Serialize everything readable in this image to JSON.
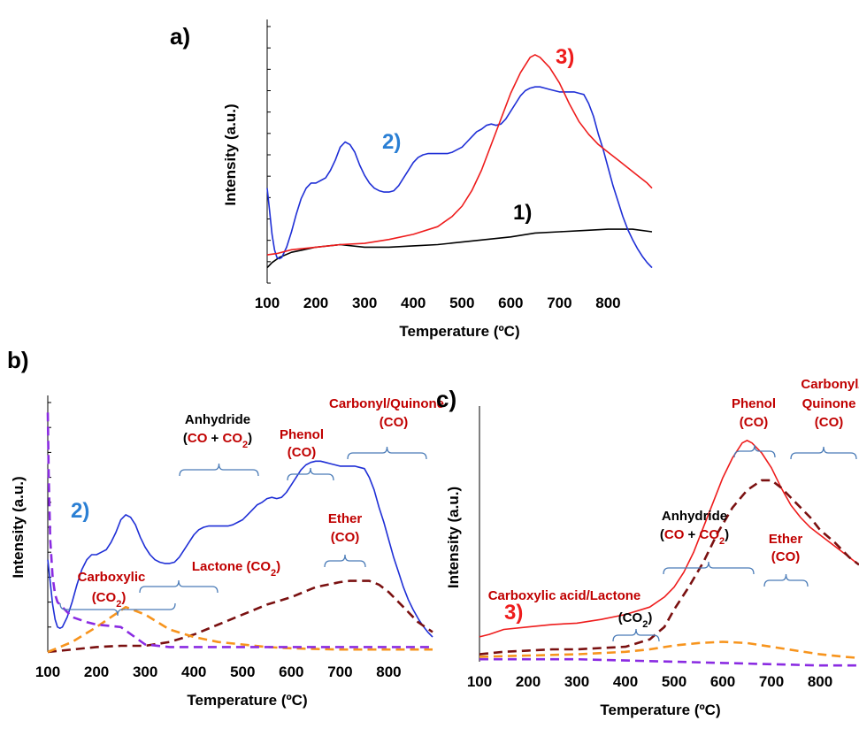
{
  "colors": {
    "blue": "#1f2fd6",
    "red": "#ee1c1c",
    "black": "#000000",
    "darkred": "#7a1010",
    "orange": "#f7941d",
    "purple": "#8a2be2",
    "annotation_red": "#c00000",
    "label_blue": "#2a7fd4",
    "bracket": "#4a7bb7"
  },
  "chart_data": [
    {
      "panel": "a)",
      "type": "line",
      "xlabel": "Temperature (ºC)",
      "ylabel": "Intensity (a.u.)",
      "xticks": [
        100,
        200,
        300,
        400,
        500,
        600,
        700,
        800
      ],
      "xlim": [
        100,
        890
      ],
      "ylim": [
        0,
        100
      ],
      "series": [
        {
          "name": "1)",
          "color": "black",
          "x": [
            100,
            110,
            125,
            150,
            175,
            200,
            250,
            300,
            350,
            400,
            450,
            500,
            550,
            600,
            650,
            700,
            750,
            800,
            850,
            890
          ],
          "y": [
            6,
            8,
            10,
            12,
            13,
            14,
            15,
            14,
            14,
            14.5,
            15,
            16,
            17,
            18,
            19.5,
            20,
            20.5,
            21,
            21,
            20
          ]
        },
        {
          "name": "2)",
          "color": "blue",
          "x": [
            100,
            105,
            110,
            115,
            120,
            125,
            130,
            140,
            150,
            160,
            170,
            180,
            190,
            200,
            210,
            220,
            230,
            240,
            250,
            260,
            270,
            280,
            290,
            300,
            310,
            320,
            330,
            340,
            350,
            360,
            370,
            380,
            390,
            400,
            410,
            420,
            430,
            440,
            450,
            460,
            470,
            480,
            490,
            500,
            510,
            520,
            530,
            540,
            550,
            560,
            570,
            580,
            590,
            600,
            610,
            620,
            630,
            640,
            650,
            660,
            670,
            680,
            690,
            700,
            710,
            720,
            730,
            740,
            750,
            760,
            770,
            780,
            790,
            800,
            810,
            820,
            830,
            840,
            850,
            860,
            870,
            880,
            890
          ],
          "y": [
            37,
            28,
            19,
            13,
            10,
            9.5,
            10,
            14,
            20,
            27,
            33,
            37,
            39,
            39,
            40,
            41,
            44,
            48,
            53,
            55,
            54,
            51,
            46,
            42,
            39,
            37,
            36,
            35.5,
            35.5,
            36,
            38,
            41,
            44,
            47,
            49,
            50,
            50.5,
            50.5,
            50.5,
            50.5,
            50.5,
            51,
            52,
            53,
            55,
            57,
            59,
            60,
            61.5,
            62,
            61.5,
            62,
            64,
            67,
            70,
            73,
            75,
            76,
            76.5,
            76.5,
            76,
            75.5,
            75,
            74.5,
            74.5,
            74.5,
            74.5,
            74,
            73.5,
            70,
            65,
            58,
            52,
            45,
            38,
            32,
            26,
            21,
            17,
            13.5,
            10.5,
            8,
            6
          ]
        },
        {
          "name": "3)",
          "color": "red",
          "x": [
            100,
            120,
            150,
            200,
            250,
            300,
            350,
            400,
            450,
            480,
            500,
            520,
            540,
            560,
            580,
            600,
            620,
            640,
            650,
            660,
            680,
            700,
            720,
            740,
            760,
            780,
            800,
            820,
            840,
            860,
            880,
            890
          ],
          "y": [
            11,
            11.5,
            13,
            14,
            15,
            15.5,
            17,
            19,
            22,
            26,
            30,
            36,
            44,
            54,
            64,
            74,
            82,
            88,
            89,
            88,
            84,
            78,
            70,
            63,
            58,
            54,
            51,
            48,
            45,
            42,
            39,
            37
          ]
        }
      ],
      "labels": [
        "1)",
        "2)",
        "3)"
      ]
    },
    {
      "panel": "b)",
      "type": "line",
      "xlabel": "Temperature (ºC)",
      "ylabel": "Intensity (a.u.)",
      "xticks": [
        100,
        200,
        300,
        400,
        500,
        600,
        700,
        800
      ],
      "xlim": [
        100,
        890
      ],
      "ylim": [
        0,
        100
      ],
      "series": [
        {
          "name": "2)",
          "style": "solid",
          "color": "blue",
          "x": [
            100,
            105,
            110,
            115,
            120,
            125,
            130,
            140,
            150,
            160,
            170,
            180,
            190,
            200,
            210,
            220,
            230,
            240,
            250,
            260,
            270,
            280,
            290,
            300,
            310,
            320,
            330,
            340,
            350,
            360,
            370,
            380,
            390,
            400,
            410,
            420,
            430,
            440,
            450,
            460,
            470,
            480,
            490,
            500,
            510,
            520,
            530,
            540,
            550,
            560,
            570,
            580,
            590,
            600,
            610,
            620,
            630,
            640,
            650,
            660,
            670,
            680,
            690,
            700,
            710,
            720,
            730,
            740,
            750,
            760,
            770,
            780,
            790,
            800,
            810,
            820,
            830,
            840,
            850,
            860,
            870,
            880,
            890
          ],
          "y": [
            37,
            28,
            19,
            13,
            10,
            9.5,
            10,
            14,
            20,
            27,
            33,
            37,
            39,
            39,
            40,
            41,
            44,
            48,
            53,
            55,
            54,
            51,
            46,
            42,
            39,
            37,
            36,
            35.5,
            35.5,
            36,
            38,
            41,
            44,
            47,
            49,
            50,
            50.5,
            50.5,
            50.5,
            50.5,
            50.5,
            51,
            52,
            53,
            55,
            57,
            59,
            60,
            61.5,
            62,
            61.5,
            62,
            64,
            67,
            70,
            73,
            75,
            76,
            76.5,
            76.5,
            76,
            75.5,
            75,
            74.5,
            74.5,
            74.5,
            74.5,
            74,
            73.5,
            70,
            65,
            58,
            52,
            45,
            38,
            32,
            26,
            21,
            17,
            13.5,
            10.5,
            8,
            6
          ]
        },
        {
          "style": "dashed",
          "color": "darkred",
          "x": [
            100,
            150,
            200,
            250,
            300,
            350,
            400,
            450,
            500,
            550,
            600,
            650,
            700,
            720,
            760,
            780,
            800,
            830,
            860,
            890
          ],
          "y": [
            0,
            1,
            2,
            2.5,
            2.5,
            4,
            7,
            11,
            15,
            19,
            22,
            26,
            28,
            28.5,
            28.5,
            27,
            24,
            18,
            12,
            8
          ]
        },
        {
          "style": "dashed",
          "color": "orange",
          "x": [
            100,
            150,
            200,
            260,
            300,
            350,
            400,
            450,
            500,
            550,
            600,
            650,
            700,
            750,
            800,
            850,
            890
          ],
          "y": [
            0,
            4,
            10,
            18,
            15,
            9,
            6,
            4,
            3,
            2,
            1.5,
            1.2,
            1,
            1,
            1,
            1,
            1
          ]
        },
        {
          "style": "dashed",
          "color": "purple",
          "x": [
            100,
            102,
            105,
            110,
            115,
            120,
            130,
            150,
            180,
            200,
            250,
            300,
            350,
            400,
            500,
            600,
            700,
            800,
            890
          ],
          "y": [
            96,
            70,
            45,
            30,
            23,
            20,
            18,
            14,
            12,
            11,
            10,
            3,
            2,
            2,
            2,
            2,
            2,
            2,
            2
          ]
        }
      ],
      "annotations": [
        {
          "parts": [
            {
              "text": "Anhydride",
              "color": "black"
            }
          ],
          "line2": [
            {
              "text": "(",
              "color": "black"
            },
            {
              "text": "CO",
              "color": "annotation_red"
            },
            {
              "text": " + ",
              "color": "black"
            },
            {
              "text": "CO",
              "color": "annotation_red"
            },
            {
              "text": "2",
              "color": "annotation_red",
              "sub": true
            },
            {
              "text": ")",
              "color": "black"
            }
          ]
        },
        {
          "parts": [
            {
              "text": "Phenol",
              "color": "annotation_red"
            }
          ],
          "line2": [
            {
              "text": "(CO)",
              "color": "annotation_red"
            }
          ]
        },
        {
          "parts": [
            {
              "text": "Carbonyl/Quinone",
              "color": "annotation_red"
            }
          ],
          "line2": [
            {
              "text": "(CO)",
              "color": "annotation_red"
            }
          ]
        },
        {
          "parts": [
            {
              "text": "Ether",
              "color": "annotation_red"
            }
          ],
          "line2": [
            {
              "text": "(CO)",
              "color": "annotation_red"
            }
          ]
        },
        {
          "parts": [
            {
              "text": "Carboxylic",
              "color": "annotation_red"
            }
          ],
          "line2": [
            {
              "text": "(CO",
              "color": "annotation_red"
            },
            {
              "text": "2",
              "color": "annotation_red",
              "sub": true
            },
            {
              "text": ")",
              "color": "annotation_red"
            }
          ]
        },
        {
          "parts": [
            {
              "text": "Lactone (CO",
              "color": "annotation_red"
            },
            {
              "text": "2",
              "color": "annotation_red",
              "sub": true
            },
            {
              "text": ")",
              "color": "annotation_red"
            }
          ]
        }
      ],
      "labels": [
        "2)"
      ]
    },
    {
      "panel": "c)",
      "type": "line",
      "xlabel": "Temperature (ºC)",
      "ylabel": "Intensity (a.u.)",
      "xticks": [
        100,
        200,
        300,
        400,
        500,
        600,
        700,
        800
      ],
      "xlim": [
        100,
        880
      ],
      "ylim": [
        0,
        100
      ],
      "series": [
        {
          "name": "3)",
          "style": "solid",
          "color": "red",
          "x": [
            100,
            120,
            150,
            200,
            250,
            300,
            350,
            400,
            450,
            480,
            500,
            520,
            540,
            560,
            580,
            600,
            620,
            640,
            650,
            660,
            680,
            700,
            720,
            740,
            760,
            780,
            800,
            820,
            840,
            860,
            880
          ],
          "y": [
            10,
            11,
            13,
            14,
            15,
            15.5,
            17,
            19,
            22,
            26,
            30,
            36,
            44,
            54,
            64,
            74,
            82,
            88,
            89,
            88,
            84,
            78,
            70,
            63,
            58,
            54,
            51,
            48,
            45,
            42,
            39
          ]
        },
        {
          "style": "dashed",
          "color": "darkred",
          "x": [
            100,
            150,
            200,
            250,
            300,
            350,
            400,
            450,
            480,
            500,
            530,
            560,
            590,
            620,
            650,
            680,
            700,
            720,
            750,
            780,
            800,
            830,
            860,
            880
          ],
          "y": [
            3,
            4,
            4.5,
            5,
            5,
            5.5,
            6,
            9,
            14,
            21,
            30,
            40,
            52,
            62,
            69,
            73,
            73,
            70,
            64,
            58,
            53,
            48,
            42,
            39
          ]
        },
        {
          "style": "dashed",
          "color": "orange",
          "x": [
            100,
            200,
            300,
            400,
            450,
            500,
            550,
            600,
            650,
            700,
            750,
            800,
            850,
            880
          ],
          "y": [
            2,
            2.5,
            3,
            4,
            5,
            6.5,
            7.5,
            8,
            7.5,
            6,
            4.5,
            3,
            2,
            1.5
          ]
        },
        {
          "style": "dashed",
          "color": "purple",
          "x": [
            100,
            200,
            300,
            400,
            500,
            600,
            700,
            800,
            880
          ],
          "y": [
            1,
            1,
            1,
            0.5,
            0,
            -0.5,
            -1,
            -1.5,
            -1.5
          ]
        }
      ],
      "annotations": [
        {
          "parts": [
            {
              "text": "Phenol",
              "color": "annotation_red"
            }
          ],
          "line2": [
            {
              "text": "(CO)",
              "color": "annotation_red"
            }
          ]
        },
        {
          "parts": [
            {
              "text": "Carbonyl/",
              "color": "annotation_red"
            }
          ],
          "line2": [
            {
              "text": "Quinone",
              "color": "annotation_red"
            }
          ],
          "line3": [
            {
              "text": "(CO)",
              "color": "annotation_red"
            }
          ]
        },
        {
          "parts": [
            {
              "text": "Anhydride",
              "color": "black"
            }
          ],
          "line2": [
            {
              "text": "(",
              "color": "black"
            },
            {
              "text": "CO",
              "color": "annotation_red"
            },
            {
              "text": " + ",
              "color": "black"
            },
            {
              "text": "CO",
              "color": "annotation_red"
            },
            {
              "text": "2",
              "color": "annotation_red",
              "sub": true
            },
            {
              "text": ")",
              "color": "black"
            }
          ]
        },
        {
          "parts": [
            {
              "text": "Ether",
              "color": "annotation_red"
            }
          ],
          "line2": [
            {
              "text": "(CO)",
              "color": "annotation_red"
            }
          ]
        },
        {
          "parts": [
            {
              "text": "Carboxylic acid/Lactone",
              "color": "annotation_red"
            }
          ]
        },
        {
          "parts": [
            {
              "text": "(CO",
              "color": "black"
            },
            {
              "text": "2",
              "color": "black",
              "sub": true
            },
            {
              "text": ")",
              "color": "black"
            }
          ]
        }
      ],
      "labels": [
        "3)"
      ]
    }
  ]
}
